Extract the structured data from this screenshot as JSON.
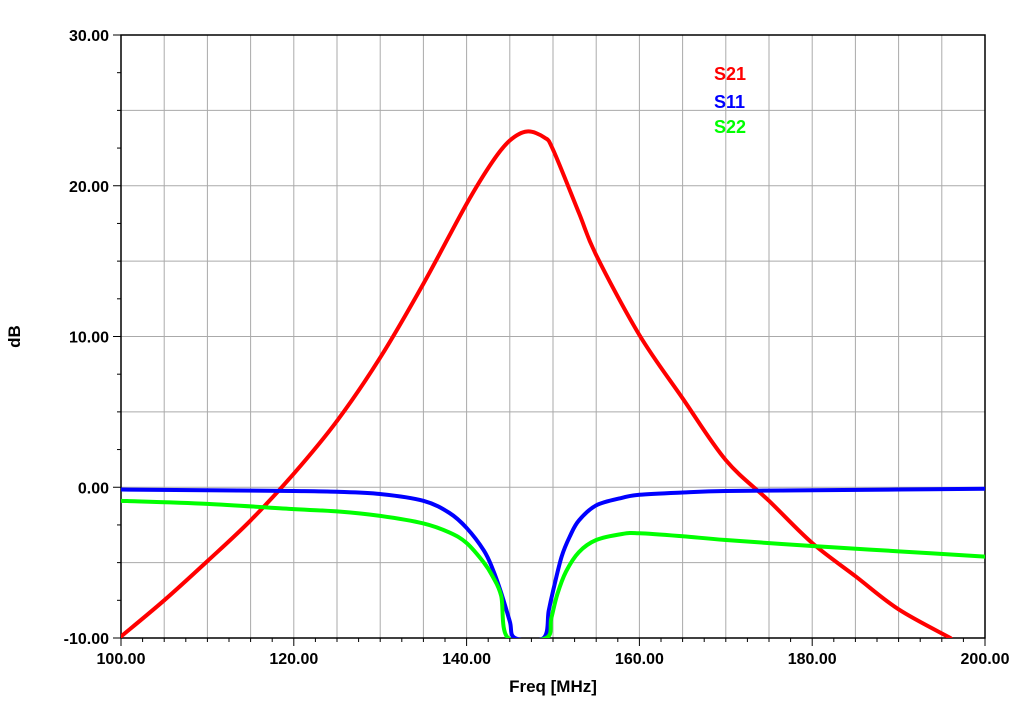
{
  "chart_data": {
    "type": "line",
    "title": "",
    "xlabel": "Freq [MHz]",
    "ylabel": "dB",
    "xlim": [
      100,
      200
    ],
    "ylim": [
      -10,
      30
    ],
    "x_ticks": [
      100,
      120,
      140,
      160,
      180,
      200
    ],
    "x_tick_labels": [
      "100.00",
      "120.00",
      "140.00",
      "160.00",
      "180.00",
      "200.00"
    ],
    "y_ticks": [
      -10,
      0,
      10,
      20,
      30
    ],
    "y_tick_labels": [
      "-10.00",
      "0.00",
      "10.00",
      "20.00",
      "30.00"
    ],
    "x_grid_step": 5,
    "y_grid_step": 5,
    "grid": true,
    "legend_position": "top-right",
    "series": [
      {
        "name": "S21",
        "color": "#ff0000",
        "x": [
          100,
          105,
          110,
          115,
          120,
          125,
          130,
          135,
          140,
          143,
          145,
          147,
          149,
          150,
          153,
          155,
          160,
          165,
          170,
          175,
          180,
          185,
          190,
          196
        ],
        "y": [
          -9.9,
          -7.5,
          -4.9,
          -2.2,
          0.9,
          4.4,
          8.6,
          13.5,
          18.8,
          21.6,
          23.0,
          23.6,
          23.2,
          22.4,
          18.2,
          15.4,
          10.1,
          5.9,
          1.8,
          -0.9,
          -3.7,
          -5.9,
          -8.1,
          -10.0
        ]
      },
      {
        "name": "S11",
        "color": "#0000ff",
        "x": [
          100,
          110,
          120,
          125,
          130,
          135,
          138,
          140,
          142,
          143,
          144,
          145,
          145.6,
          148.9,
          149.5,
          150,
          151,
          152,
          153,
          155,
          158,
          160,
          165,
          170,
          180,
          190,
          200
        ],
        "y": [
          -0.15,
          -0.2,
          -0.25,
          -0.3,
          -0.45,
          -0.9,
          -1.7,
          -2.7,
          -4.2,
          -5.4,
          -7.0,
          -8.9,
          -10.0,
          -10.0,
          -8.2,
          -6.9,
          -4.6,
          -3.2,
          -2.2,
          -1.2,
          -0.7,
          -0.5,
          -0.35,
          -0.25,
          -0.2,
          -0.15,
          -0.1
        ]
      },
      {
        "name": "S22",
        "color": "#00ff00",
        "x": [
          100,
          110,
          120,
          125,
          130,
          135,
          138,
          140,
          142,
          143,
          144,
          144.8,
          149.2,
          149.8,
          150.5,
          151.5,
          153,
          155,
          158,
          160,
          165,
          170,
          180,
          190,
          200
        ],
        "y": [
          -0.9,
          -1.1,
          -1.45,
          -1.6,
          -1.9,
          -2.4,
          -3.0,
          -3.7,
          -5.0,
          -5.9,
          -7.2,
          -10.0,
          -10.0,
          -8.7,
          -7.1,
          -5.6,
          -4.3,
          -3.5,
          -3.1,
          -3.05,
          -3.25,
          -3.5,
          -3.9,
          -4.25,
          -4.6
        ]
      }
    ]
  }
}
